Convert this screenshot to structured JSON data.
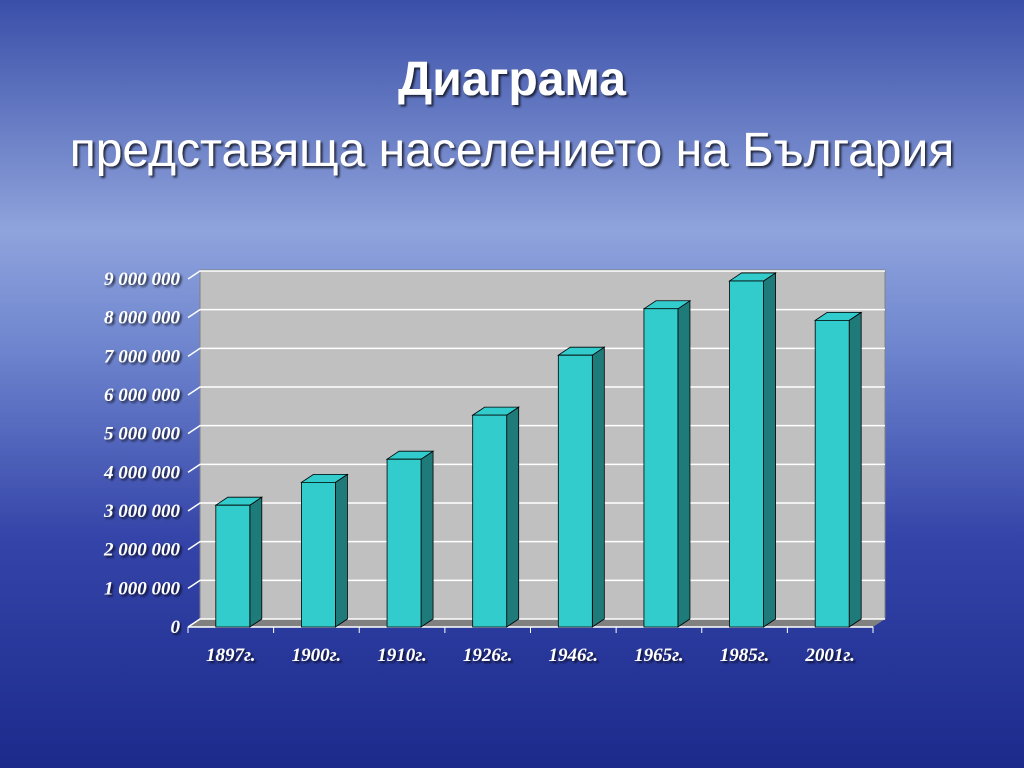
{
  "chart_data": {
    "type": "bar3d",
    "title": [
      "Диаграма",
      "представяща населението на България"
    ],
    "categories": [
      "1897г.",
      "1900г.",
      "1910г.",
      "1926г.",
      "1946г.",
      "1965г.",
      "1985г.",
      "2001г."
    ],
    "values": [
      3150000,
      3740000,
      4340000,
      5480000,
      7030000,
      8230000,
      8950000,
      7930000
    ],
    "color": "#33cccc",
    "ylim": [
      0,
      9000000
    ],
    "yticks": [
      0,
      {
        "value": 1000000,
        "label": "1 000 000"
      },
      {
        "value": 2000000,
        "label": "2 000 000"
      },
      {
        "value": 3000000,
        "label": "3 000 000"
      },
      {
        "value": 4000000,
        "label": "4 000 000"
      },
      {
        "value": 5000000,
        "label": "5 000 000"
      },
      {
        "value": 6000000,
        "label": "6 000 000"
      },
      {
        "value": 7000000,
        "label": "7 000 000"
      },
      {
        "value": 8000000,
        "label": "8 000 000"
      },
      {
        "value": 9000000,
        "label": "9 000 000"
      }
    ],
    "grid": true
  }
}
